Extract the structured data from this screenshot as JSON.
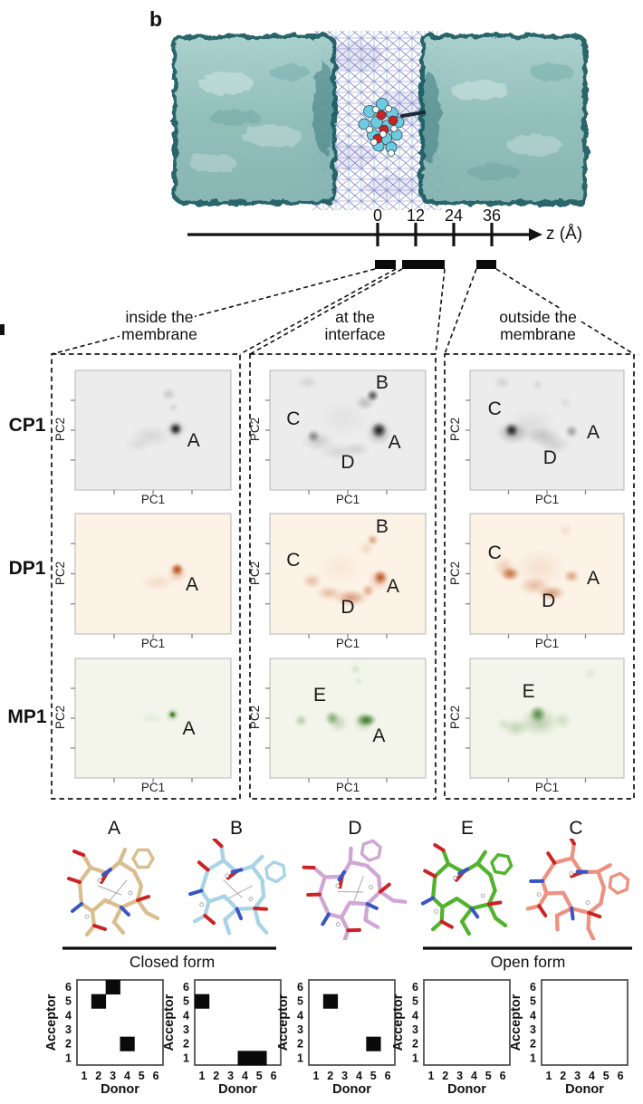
{
  "panel_label": "b",
  "simulation_image": {
    "description": "cyclic peptide molecule embedded in lipid membrane between two water slabs",
    "water_slab_color": "#8fc0bd",
    "membrane_edge_color": "#15595e",
    "lipid_mesh_colors": [
      "#7d7dc4",
      "#9a8fd0",
      "#76b8cf"
    ],
    "molecule_atom_colors": {
      "carbon": "#6ecbdf",
      "oxygen": "#cc2222",
      "hydrogen": "#ffffff",
      "nitrogen": "#3a56c4"
    }
  },
  "z_axis": {
    "label": "z (Å)",
    "ticks": [
      "0",
      "12",
      "24",
      "36"
    ]
  },
  "region_labels": [
    [
      "inside the",
      "membrane"
    ],
    [
      "at the",
      "interface"
    ],
    [
      "outside the",
      "membrane"
    ]
  ],
  "row_labels": [
    "CP1",
    "DP1",
    "MP1"
  ],
  "axis_labels": {
    "x": "PC1",
    "y": "PC2"
  },
  "chart_data": {
    "pca_plots": [
      {
        "type": "density2d",
        "row": "CP1",
        "region": "inside the membrane",
        "xlabel": "PC1",
        "ylabel": "PC2",
        "bg": "#ececec",
        "color": "#111111",
        "annotations": [
          {
            "label": "A",
            "x": 0.76,
            "y": 0.6
          }
        ],
        "clusters": [
          {
            "x": 0.6,
            "y": 0.2,
            "r": 8,
            "o": 0.16,
            "sx": 1.2
          },
          {
            "x": 0.63,
            "y": 0.31,
            "r": 6,
            "o": 0.1
          },
          {
            "x": 0.49,
            "y": 0.55,
            "r": 13,
            "o": 0.1,
            "sx": 1.9
          },
          {
            "x": 0.4,
            "y": 0.62,
            "r": 9,
            "o": 0.07,
            "sx": 1.8
          },
          {
            "x": 0.645,
            "y": 0.49,
            "r": 12,
            "o": 0.3
          },
          {
            "x": 0.645,
            "y": 0.49,
            "r": 7.5,
            "o": 0.95
          }
        ]
      },
      {
        "type": "density2d",
        "row": "CP1",
        "region": "at the interface",
        "xlabel": "PC1",
        "ylabel": "PC2",
        "bg": "#ececec",
        "color": "#111111",
        "annotations": [
          {
            "label": "B",
            "x": 0.72,
            "y": 0.11
          },
          {
            "label": "C",
            "x": 0.15,
            "y": 0.42
          },
          {
            "label": "A",
            "x": 0.8,
            "y": 0.61
          },
          {
            "label": "D",
            "x": 0.5,
            "y": 0.78
          }
        ],
        "clusters": [
          {
            "x": 0.24,
            "y": 0.1,
            "r": 9,
            "o": 0.1,
            "sx": 1.5
          },
          {
            "x": 0.66,
            "y": 0.21,
            "r": 7.5,
            "o": 0.7
          },
          {
            "x": 0.61,
            "y": 0.27,
            "r": 9,
            "o": 0.22,
            "sx": 1.3
          },
          {
            "x": 0.7,
            "y": 0.5,
            "r": 9.5,
            "o": 0.95
          },
          {
            "x": 0.7,
            "y": 0.52,
            "r": 15,
            "o": 0.3
          },
          {
            "x": 0.28,
            "y": 0.55,
            "r": 8,
            "o": 0.42
          },
          {
            "x": 0.31,
            "y": 0.59,
            "r": 12,
            "o": 0.15,
            "sx": 1.5
          },
          {
            "x": 0.43,
            "y": 0.68,
            "r": 11,
            "o": 0.1,
            "sx": 2.0
          },
          {
            "x": 0.56,
            "y": 0.66,
            "r": 9,
            "o": 0.12,
            "sx": 1.7
          },
          {
            "x": 0.47,
            "y": 0.4,
            "r": 22,
            "o": 0.05,
            "sx": 1.3
          }
        ]
      },
      {
        "type": "density2d",
        "row": "CP1",
        "region": "outside the membrane",
        "xlabel": "PC1",
        "ylabel": "PC2",
        "bg": "#ececec",
        "color": "#111111",
        "annotations": [
          {
            "label": "C",
            "x": 0.16,
            "y": 0.33
          },
          {
            "label": "A",
            "x": 0.8,
            "y": 0.53
          },
          {
            "label": "D",
            "x": 0.52,
            "y": 0.74
          }
        ],
        "clusters": [
          {
            "x": 0.21,
            "y": 0.1,
            "r": 8,
            "o": 0.12,
            "sx": 1.3
          },
          {
            "x": 0.44,
            "y": 0.12,
            "r": 7,
            "o": 0.09
          },
          {
            "x": 0.62,
            "y": 0.27,
            "r": 7,
            "o": 0.08
          },
          {
            "x": 0.27,
            "y": 0.5,
            "r": 8.5,
            "o": 0.92
          },
          {
            "x": 0.28,
            "y": 0.52,
            "r": 14,
            "o": 0.3,
            "sx": 1.4
          },
          {
            "x": 0.47,
            "y": 0.55,
            "r": 12,
            "o": 0.18,
            "sx": 1.8
          },
          {
            "x": 0.66,
            "y": 0.51,
            "r": 8,
            "o": 0.35
          },
          {
            "x": 0.55,
            "y": 0.62,
            "r": 11,
            "o": 0.12,
            "sx": 1.8
          },
          {
            "x": 0.4,
            "y": 0.45,
            "r": 20,
            "o": 0.07,
            "sx": 1.4
          }
        ]
      },
      {
        "type": "density2d",
        "row": "DP1",
        "region": "inside the membrane",
        "xlabel": "PC1",
        "ylabel": "PC2",
        "bg": "#fcf2e5",
        "color": "#b5420c",
        "annotations": [
          {
            "label": "A",
            "x": 0.75,
            "y": 0.6
          }
        ],
        "clusters": [
          {
            "x": 0.655,
            "y": 0.465,
            "r": 7.5,
            "o": 0.95
          },
          {
            "x": 0.655,
            "y": 0.49,
            "r": 12,
            "o": 0.32
          },
          {
            "x": 0.53,
            "y": 0.57,
            "r": 10,
            "o": 0.13,
            "sx": 2.0
          }
        ]
      },
      {
        "type": "density2d",
        "row": "DP1",
        "region": "at the interface",
        "xlabel": "PC1",
        "ylabel": "PC2",
        "bg": "#fcf2e5",
        "color": "#b5420c",
        "annotations": [
          {
            "label": "B",
            "x": 0.72,
            "y": 0.12
          },
          {
            "label": "C",
            "x": 0.15,
            "y": 0.4
          },
          {
            "label": "A",
            "x": 0.79,
            "y": 0.62
          },
          {
            "label": "D",
            "x": 0.5,
            "y": 0.79
          }
        ],
        "clusters": [
          {
            "x": 0.66,
            "y": 0.22,
            "r": 7,
            "o": 0.45
          },
          {
            "x": 0.62,
            "y": 0.29,
            "r": 9,
            "o": 0.15
          },
          {
            "x": 0.71,
            "y": 0.53,
            "r": 8.5,
            "o": 0.85
          },
          {
            "x": 0.7,
            "y": 0.55,
            "r": 13,
            "o": 0.3
          },
          {
            "x": 0.27,
            "y": 0.56,
            "r": 9,
            "o": 0.3,
            "sx": 1.3
          },
          {
            "x": 0.38,
            "y": 0.66,
            "r": 9,
            "o": 0.3,
            "sx": 1.7
          },
          {
            "x": 0.52,
            "y": 0.7,
            "r": 10,
            "o": 0.5,
            "sx": 2.0
          },
          {
            "x": 0.63,
            "y": 0.64,
            "r": 8,
            "o": 0.42
          },
          {
            "x": 0.45,
            "y": 0.45,
            "r": 20,
            "o": 0.06,
            "sx": 1.4
          }
        ]
      },
      {
        "type": "density2d",
        "row": "DP1",
        "region": "outside the membrane",
        "xlabel": "PC1",
        "ylabel": "PC2",
        "bg": "#fcf2e5",
        "color": "#b5420c",
        "annotations": [
          {
            "label": "C",
            "x": 0.16,
            "y": 0.34
          },
          {
            "label": "A",
            "x": 0.8,
            "y": 0.55
          },
          {
            "label": "D",
            "x": 0.51,
            "y": 0.74
          }
        ],
        "clusters": [
          {
            "x": 0.62,
            "y": 0.14,
            "r": 9,
            "o": 0.1
          },
          {
            "x": 0.26,
            "y": 0.5,
            "r": 9,
            "o": 0.75,
            "sx": 1.3
          },
          {
            "x": 0.22,
            "y": 0.44,
            "r": 13,
            "o": 0.2
          },
          {
            "x": 0.42,
            "y": 0.6,
            "r": 11,
            "o": 0.3,
            "sx": 1.7
          },
          {
            "x": 0.53,
            "y": 0.66,
            "r": 9,
            "o": 0.5,
            "sx": 1.8
          },
          {
            "x": 0.66,
            "y": 0.52,
            "r": 8,
            "o": 0.45,
            "sx": 1.2
          },
          {
            "x": 0.45,
            "y": 0.45,
            "r": 22,
            "o": 0.1,
            "sx": 1.4
          }
        ]
      },
      {
        "type": "density2d",
        "row": "MP1",
        "region": "inside the membrane",
        "xlabel": "PC1",
        "ylabel": "PC2",
        "bg": "#f3f5ea",
        "color": "#2f6e1a",
        "annotations": [
          {
            "label": "A",
            "x": 0.73,
            "y": 0.6
          }
        ],
        "clusters": [
          {
            "x": 0.625,
            "y": 0.47,
            "r": 4.5,
            "o": 0.95
          },
          {
            "x": 0.625,
            "y": 0.47,
            "r": 8.5,
            "o": 0.38
          },
          {
            "x": 0.49,
            "y": 0.5,
            "r": 7,
            "o": 0.08,
            "sx": 2.0
          }
        ]
      },
      {
        "type": "density2d",
        "row": "MP1",
        "region": "at the interface",
        "xlabel": "PC1",
        "ylabel": "PC2",
        "bg": "#f3f5ea",
        "color": "#2f6e1a",
        "annotations": [
          {
            "label": "E",
            "x": 0.32,
            "y": 0.32
          },
          {
            "label": "A",
            "x": 0.7,
            "y": 0.66
          }
        ],
        "clusters": [
          {
            "x": 0.55,
            "y": 0.09,
            "r": 6.5,
            "o": 0.15
          },
          {
            "x": 0.57,
            "y": 0.19,
            "r": 5.5,
            "o": 0.1
          },
          {
            "x": 0.2,
            "y": 0.52,
            "r": 8,
            "o": 0.3
          },
          {
            "x": 0.4,
            "y": 0.5,
            "r": 9,
            "o": 0.55
          },
          {
            "x": 0.44,
            "y": 0.54,
            "r": 12,
            "o": 0.22
          },
          {
            "x": 0.62,
            "y": 0.515,
            "r": 8,
            "o": 0.92,
            "sx": 1.5
          },
          {
            "x": 0.6,
            "y": 0.53,
            "r": 12,
            "o": 0.3
          }
        ]
      },
      {
        "type": "density2d",
        "row": "MP1",
        "region": "outside the membrane",
        "xlabel": "PC1",
        "ylabel": "PC2",
        "bg": "#f3f5ea",
        "color": "#2f6e1a",
        "annotations": [
          {
            "label": "E",
            "x": 0.38,
            "y": 0.29
          }
        ],
        "clusters": [
          {
            "x": 0.78,
            "y": 0.13,
            "r": 8,
            "o": 0.1
          },
          {
            "x": 0.44,
            "y": 0.465,
            "r": 10,
            "o": 0.75
          },
          {
            "x": 0.45,
            "y": 0.53,
            "r": 18,
            "o": 0.3,
            "sx": 1.3
          },
          {
            "x": 0.3,
            "y": 0.58,
            "r": 11,
            "o": 0.25,
            "sx": 1.4
          },
          {
            "x": 0.6,
            "y": 0.52,
            "r": 11,
            "o": 0.18
          },
          {
            "x": 0.22,
            "y": 0.55,
            "r": 8,
            "o": 0.15
          }
        ]
      }
    ],
    "hbond_maps": {
      "type": "heatmap",
      "xlabel": "Donor",
      "ylabel": "Acceptor",
      "x_ticks": [
        "1",
        "2",
        "3",
        "4",
        "5",
        "6"
      ],
      "y_ticks": [
        "1",
        "2",
        "3",
        "4",
        "5",
        "6"
      ],
      "maps": [
        {
          "structure": "A",
          "filled_cells": [
            [
              2,
              5
            ],
            [
              3,
              6
            ],
            [
              4,
              2
            ]
          ]
        },
        {
          "structure": "B",
          "filled_cells": [
            [
              1,
              5
            ],
            [
              4,
              1
            ],
            [
              5,
              1
            ]
          ]
        },
        {
          "structure": "D",
          "filled_cells": [
            [
              2,
              5
            ],
            [
              5,
              2
            ]
          ]
        },
        {
          "structure": "E",
          "filled_cells": []
        },
        {
          "structure": "C",
          "filled_cells": []
        }
      ]
    }
  },
  "structures": [
    {
      "label": "A",
      "color": "#d9bd8f",
      "form": "closed"
    },
    {
      "label": "B",
      "color": "#a9d3e6",
      "form": "closed"
    },
    {
      "label": "D",
      "color": "#cfa6d4",
      "form": "closed"
    },
    {
      "label": "E",
      "color": "#51b32e",
      "form": "open"
    },
    {
      "label": "C",
      "color": "#ef9180",
      "form": "open"
    }
  ],
  "form_groups": [
    {
      "label": "Closed form"
    },
    {
      "label": "Open form"
    }
  ]
}
